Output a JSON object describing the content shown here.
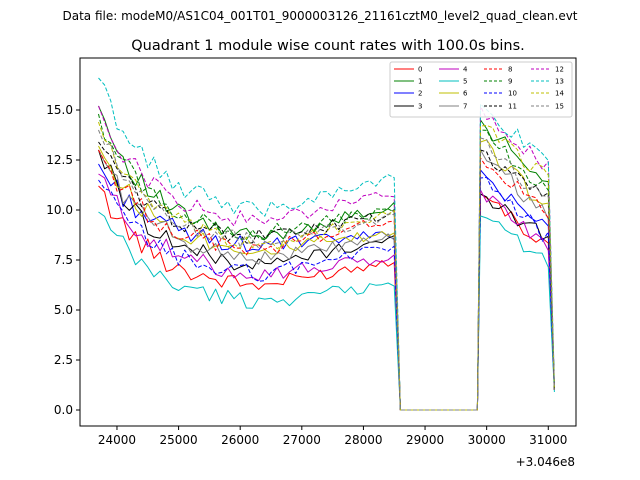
{
  "chart_data": {
    "type": "line",
    "suptitle": "Data file: modeM0/AS1C04_001T01_9000003126_21161cztM0_level2_quad_clean.evt",
    "title": "Quadrant 1 module wise count rates with 100.0s bins.",
    "xlabel": "",
    "ylabel": "",
    "x_offset_label": "+3.046e8",
    "xlim": [
      23400,
      31450
    ],
    "ylim": [
      -0.8,
      17.6
    ],
    "x_ticks": [
      24000,
      25000,
      26000,
      27000,
      28000,
      29000,
      30000,
      31000
    ],
    "y_ticks": [
      0.0,
      2.5,
      5.0,
      7.5,
      10.0,
      12.5,
      15.0
    ],
    "x_tick_labels": [
      "24000",
      "25000",
      "26000",
      "27000",
      "28000",
      "29000",
      "30000",
      "31000"
    ],
    "y_tick_labels": [
      "0.0",
      "2.5",
      "5.0",
      "7.5",
      "10.0",
      "12.5",
      "15.0"
    ],
    "legend_position": "top-right",
    "segments": [
      {
        "start": 23700,
        "end": 28500,
        "drop_to": 28600
      },
      {
        "start": 29900,
        "end": 31100,
        "rise_from": 29850
      }
    ],
    "gap": {
      "x": [
        28600,
        28700,
        28800,
        28900,
        29000,
        29100,
        29200,
        29300,
        29400,
        29500,
        29600,
        29700,
        29800
      ],
      "value": 0.0
    },
    "series": [
      {
        "name": "0",
        "color": "#ff0000",
        "dash": "solid",
        "seg1": {
          "start": 11.2,
          "min": 6.2,
          "end": 7.5
        },
        "seg2": {
          "start": 10.8,
          "end": 8.0
        },
        "final": 1.0
      },
      {
        "name": "1",
        "color": "#008000",
        "dash": "solid",
        "seg1": {
          "start": 15.2,
          "min": 8.6,
          "end": 10.2
        },
        "seg2": {
          "start": 14.5,
          "end": 11.0
        },
        "final": 1.2
      },
      {
        "name": "2",
        "color": "#0000ff",
        "dash": "solid",
        "seg1": {
          "start": 12.3,
          "min": 8.2,
          "end": 8.8
        },
        "seg2": {
          "start": 12.0,
          "end": 9.0
        },
        "final": 1.0
      },
      {
        "name": "3",
        "color": "#000000",
        "dash": "solid",
        "seg1": {
          "start": 13.0,
          "min": 7.2,
          "end": 8.6
        },
        "seg2": {
          "start": 10.8,
          "end": 8.5
        },
        "final": 1.0
      },
      {
        "name": "4",
        "color": "#bf00bf",
        "dash": "solid",
        "seg1": {
          "start": 11.8,
          "min": 6.8,
          "end": 7.6
        },
        "seg2": {
          "start": 11.0,
          "end": 8.2
        },
        "final": 1.0
      },
      {
        "name": "5",
        "color": "#00bfbf",
        "dash": "solid",
        "seg1": {
          "start": 9.9,
          "min": 5.4,
          "end": 6.3
        },
        "seg2": {
          "start": 9.7,
          "end": 7.2
        },
        "final": 0.9
      },
      {
        "name": "6",
        "color": "#bfbf00",
        "dash": "solid",
        "seg1": {
          "start": 13.2,
          "min": 8.0,
          "end": 8.8
        },
        "seg2": {
          "start": 13.4,
          "end": 10.0
        },
        "final": 1.0
      },
      {
        "name": "7",
        "color": "#808080",
        "dash": "solid",
        "seg1": {
          "start": 13.0,
          "min": 7.6,
          "end": 8.6
        },
        "seg2": {
          "start": 13.0,
          "end": 9.5
        },
        "final": 1.0
      },
      {
        "name": "8",
        "color": "#ff0000",
        "dash": "dashed",
        "seg1": {
          "start": 13.0,
          "min": 8.0,
          "end": 9.6
        },
        "seg2": {
          "start": 12.6,
          "end": 9.8
        },
        "final": 1.0
      },
      {
        "name": "9",
        "color": "#008000",
        "dash": "dashed",
        "seg1": {
          "start": 14.8,
          "min": 8.8,
          "end": 10.0
        },
        "seg2": {
          "start": 14.0,
          "end": 11.0
        },
        "final": 1.1
      },
      {
        "name": "10",
        "color": "#0000ff",
        "dash": "dashed",
        "seg1": {
          "start": 11.5,
          "min": 6.8,
          "end": 8.2
        },
        "seg2": {
          "start": 11.6,
          "end": 8.5
        },
        "final": 1.0
      },
      {
        "name": "11",
        "color": "#000000",
        "dash": "dashed",
        "seg1": {
          "start": 13.4,
          "min": 8.6,
          "end": 9.8
        },
        "seg2": {
          "start": 13.0,
          "end": 10.5
        },
        "final": 1.0
      },
      {
        "name": "12",
        "color": "#bf00bf",
        "dash": "dashed",
        "seg1": {
          "start": 15.2,
          "min": 9.4,
          "end": 10.8
        },
        "seg2": {
          "start": 15.2,
          "end": 12.0
        },
        "final": 1.2
      },
      {
        "name": "13",
        "color": "#00bfbf",
        "dash": "dashed",
        "seg1": {
          "start": 16.6,
          "min": 10.0,
          "end": 11.6
        },
        "seg2": {
          "start": 15.3,
          "end": 12.2
        },
        "final": 1.2
      },
      {
        "name": "14",
        "color": "#bfbf00",
        "dash": "dashed",
        "seg1": {
          "start": 14.4,
          "min": 8.2,
          "end": 9.8
        },
        "seg2": {
          "start": 14.2,
          "end": 11.5
        },
        "final": 1.0
      },
      {
        "name": "15",
        "color": "#808080",
        "dash": "dashed",
        "seg1": {
          "start": 14.0,
          "min": 8.4,
          "end": 9.6
        },
        "seg2": {
          "start": 13.6,
          "end": 10.3
        },
        "final": 1.0
      }
    ]
  }
}
